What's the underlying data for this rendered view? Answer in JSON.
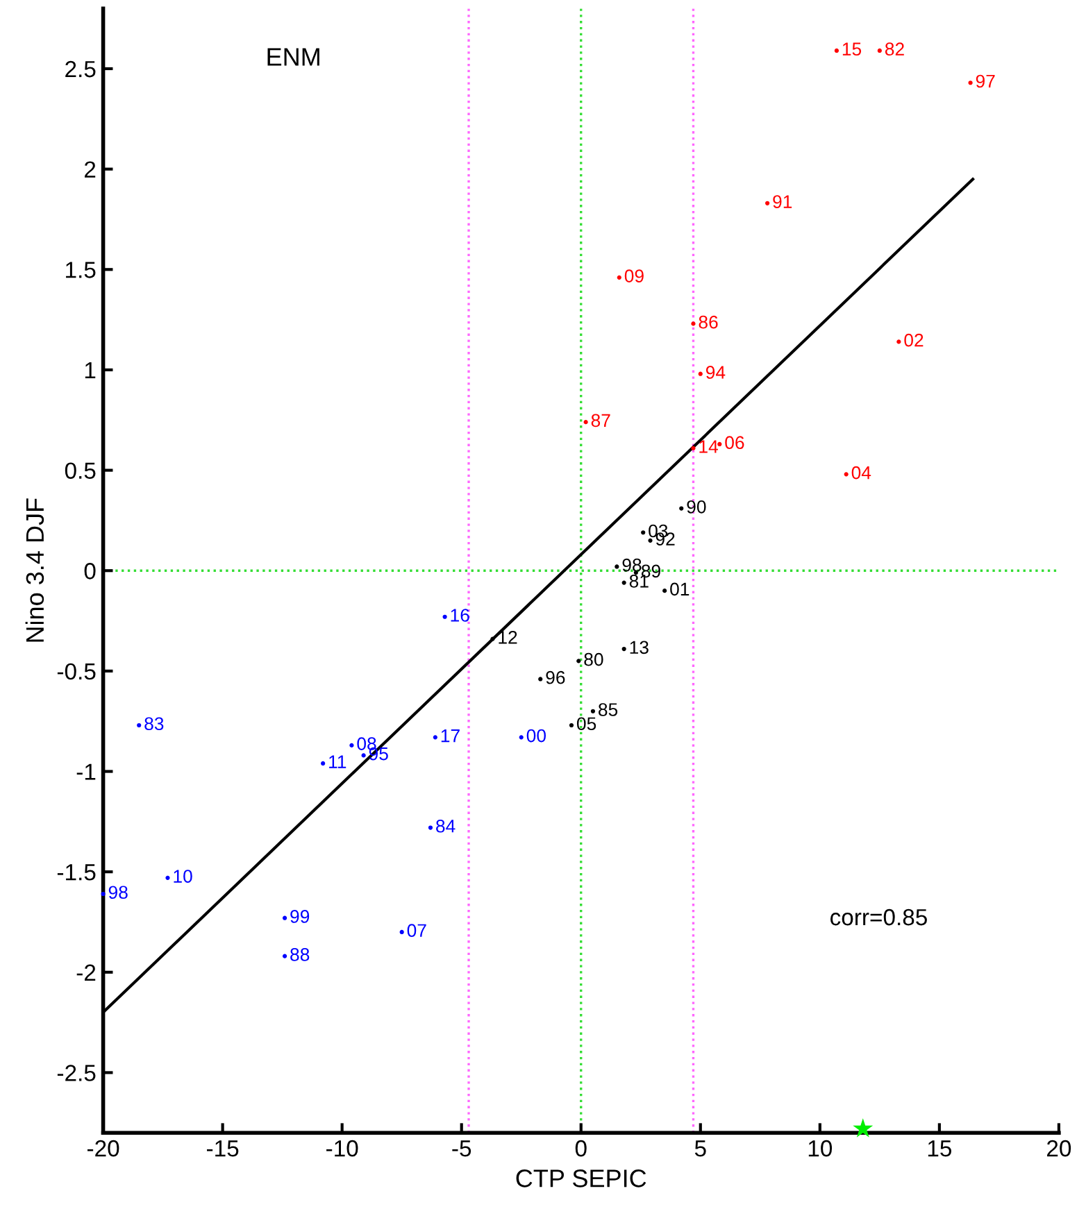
{
  "chart_data": {
    "type": "scatter",
    "xlabel": "CTP SEPIC",
    "ylabel": "Nino 3.4 DJF",
    "annotations": [
      "ENM",
      "corr=0.85",
      {
        "text": "15",
        "x": 10.7,
        "y": 2.59
      },
      {
        "text": "82",
        "x": 12.5,
        "y": 2.59
      },
      {
        "text": "97",
        "x": 16.3,
        "y": 2.43
      },
      {
        "text": "91",
        "x": 7.8,
        "y": 1.83
      },
      {
        "text": "09",
        "x": 1.6,
        "y": 1.46
      },
      {
        "text": "86",
        "x": 4.7,
        "y": 1.23
      },
      {
        "text": "02",
        "x": 13.3,
        "y": 1.14
      },
      {
        "text": "94",
        "x": 5.0,
        "y": 0.98
      },
      {
        "text": "87",
        "x": 0.2,
        "y": 0.74
      },
      {
        "text": "14",
        "x": 4.7,
        "y": 0.61
      },
      {
        "text": "06",
        "x": 5.8,
        "y": 0.63
      },
      {
        "text": "04",
        "x": 11.1,
        "y": 0.48
      },
      {
        "text": "90",
        "x": 4.2,
        "y": 0.31
      },
      {
        "text": "03",
        "x": 2.6,
        "y": 0.19
      },
      {
        "text": "92",
        "x": 2.9,
        "y": 0.15
      },
      {
        "text": "98",
        "x": 1.5,
        "y": 0.02
      },
      {
        "text": "89",
        "x": 2.3,
        "y": -0.01
      },
      {
        "text": "81",
        "x": 1.8,
        "y": -0.06
      },
      {
        "text": "01",
        "x": 3.5,
        "y": -0.1
      },
      {
        "text": "12",
        "x": -3.7,
        "y": -0.34
      },
      {
        "text": "13",
        "x": 1.8,
        "y": -0.39
      },
      {
        "text": "80",
        "x": -0.1,
        "y": -0.45
      },
      {
        "text": "96",
        "x": -1.7,
        "y": -0.54
      },
      {
        "text": "85",
        "x": 0.5,
        "y": -0.7
      },
      {
        "text": "05",
        "x": -0.4,
        "y": -0.77
      },
      {
        "text": "16",
        "x": -5.7,
        "y": -0.23
      },
      {
        "text": "83",
        "x": -18.5,
        "y": -0.77
      },
      {
        "text": "17",
        "x": -6.1,
        "y": -0.83
      },
      {
        "text": "00",
        "x": -2.5,
        "y": -0.83
      },
      {
        "text": "08",
        "x": -9.6,
        "y": -0.87
      },
      {
        "text": "95",
        "x": -9.1,
        "y": -0.92
      },
      {
        "text": "11",
        "x": -10.8,
        "y": -0.96
      },
      {
        "text": "84",
        "x": -6.3,
        "y": -1.28
      },
      {
        "text": "10",
        "x": -17.3,
        "y": -1.53
      },
      {
        "text": "98",
        "x": -20,
        "y": -1.61
      },
      {
        "text": "99",
        "x": -12.4,
        "y": -1.73
      },
      {
        "text": "07",
        "x": -7.5,
        "y": -1.8
      },
      {
        "text": "88",
        "x": -12.4,
        "y": -1.92
      }
    ],
    "xlim": [
      -20,
      20
    ],
    "ylim": [
      -2.8,
      2.8
    ],
    "xticks": [
      -20,
      -15,
      -10,
      -5,
      0,
      5,
      10,
      15,
      20
    ],
    "yticks": [
      -2.5,
      -2,
      -1.5,
      -1,
      -0.5,
      0,
      0.5,
      1,
      1.5,
      2,
      2.5
    ],
    "grid": false,
    "legend": false,
    "marker": "circle",
    "ref_lines": [
      {
        "axis": "x",
        "value": -4.7,
        "color": "#ff66ff",
        "line_style": "dotted"
      },
      {
        "axis": "x",
        "value": 4.7,
        "color": "#ff66ff",
        "line_style": "dotted"
      },
      {
        "axis": "x",
        "value": 0,
        "color": "#33dd33",
        "line_style": "dotted"
      },
      {
        "axis": "y",
        "value": 0,
        "color": "#33dd33",
        "line_style": "dotted"
      }
    ],
    "series": [
      {
        "color": "#ff0000",
        "x": [
          10.7,
          12.5,
          16.3,
          7.8,
          1.6,
          4.7,
          13.3,
          5.0,
          0.2,
          4.7,
          5.8,
          11.1
        ],
        "values": [
          2.59,
          2.59,
          2.43,
          1.83,
          1.46,
          1.23,
          1.14,
          0.98,
          0.74,
          0.61,
          0.63,
          0.48
        ]
      },
      {
        "color": "#000000",
        "x": [
          4.2,
          2.6,
          2.9,
          1.5,
          2.3,
          1.8,
          3.5,
          -3.7,
          1.8,
          -0.1,
          -1.7,
          0.5,
          -0.4
        ],
        "values": [
          0.31,
          0.19,
          0.15,
          0.02,
          -0.01,
          -0.06,
          -0.1,
          -0.34,
          -0.39,
          -0.45,
          -0.54,
          -0.7,
          -0.77
        ]
      },
      {
        "color": "#0000ff",
        "x": [
          -5.7,
          -18.5,
          -6.1,
          -2.5,
          -9.6,
          -9.1,
          -10.8,
          -6.3,
          -17.3,
          -20,
          -12.4,
          -7.5,
          -12.4
        ],
        "values": [
          -0.23,
          -0.77,
          -0.83,
          -0.83,
          -0.87,
          -0.92,
          -0.96,
          -1.28,
          -1.53,
          -1.61,
          -1.73,
          -1.8,
          -1.92
        ]
      },
      {
        "type": "line",
        "color": "#000000",
        "line_style": "solid",
        "marker": "none",
        "x": [
          -20,
          16.4
        ],
        "values": [
          -2.2,
          1.95
        ]
      },
      {
        "color": "#00ee00",
        "marker": "star",
        "x": [
          11.8
        ],
        "values": [
          -2.78
        ]
      }
    ]
  }
}
